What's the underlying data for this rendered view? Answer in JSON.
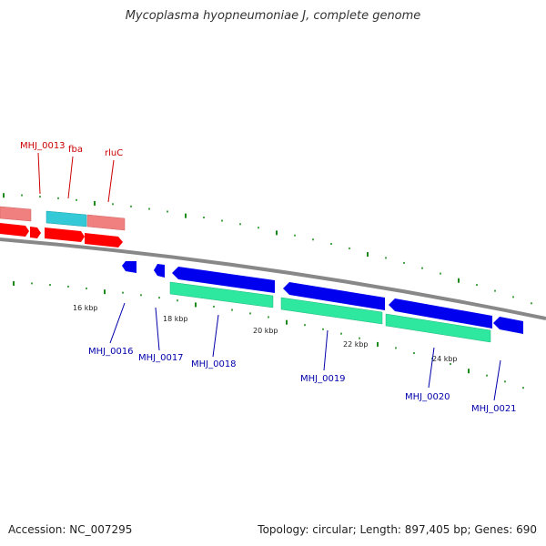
{
  "title": "Mycoplasma hyopneumoniae J, complete genome",
  "footer": {
    "accession": "Accession: NC_007295",
    "stats": "Topology: circular; Length: 897,405 bp; Genes: 690"
  },
  "colors": {
    "backbone": "#888888",
    "plus_strand_gene": "#ff0000",
    "plus_strand_cds_pink": "#f08080",
    "plus_strand_cds_cyan": "#33c9d6",
    "minus_strand_gene": "#0000ee",
    "minus_strand_cds": "#2fe8a0",
    "tick": "#1a8a1a",
    "plus_label": "#cc0000",
    "minus_label": "#0000aa"
  },
  "plus_labels": [
    "MHJ_0013",
    "fba",
    "rluC"
  ],
  "minus_labels": [
    "MHJ_0016",
    "MHJ_0017",
    "MHJ_0018",
    "MHJ_0019",
    "MHJ_0020",
    "MHJ_0021"
  ],
  "kbp_labels": [
    "16 kbp",
    "18 kbp",
    "20 kbp",
    "22 kbp",
    "24 kbp"
  ]
}
